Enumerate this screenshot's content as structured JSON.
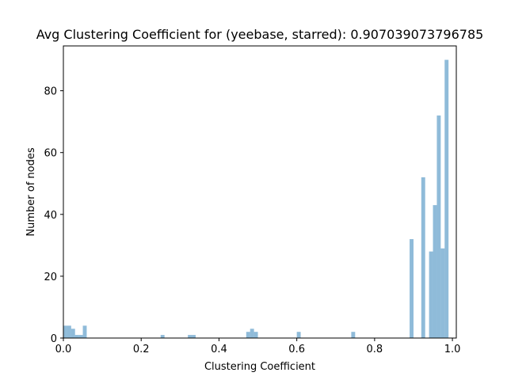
{
  "chart_data": {
    "type": "bar",
    "title": "Avg Clustering Coefficient for (yeebase, starred): 0.907039073796785",
    "xlabel": "Clustering Coefficient",
    "ylabel": "Number of nodes",
    "xlim": [
      0.0,
      1.01
    ],
    "ylim": [
      0,
      94.5
    ],
    "xticks": [
      0.0,
      0.2,
      0.4,
      0.6,
      0.8,
      1.0
    ],
    "xtick_labels": [
      "0.0",
      "0.2",
      "0.4",
      "0.6",
      "0.8",
      "1.0"
    ],
    "yticks": [
      0,
      20,
      40,
      60,
      80
    ],
    "ytick_labels": [
      "0",
      "20",
      "40",
      "60",
      "80"
    ],
    "bin_width": 0.01,
    "bars": [
      {
        "x": 0.0,
        "value": 4
      },
      {
        "x": 0.01,
        "value": 4
      },
      {
        "x": 0.02,
        "value": 3
      },
      {
        "x": 0.03,
        "value": 1
      },
      {
        "x": 0.04,
        "value": 1
      },
      {
        "x": 0.05,
        "value": 4
      },
      {
        "x": 0.25,
        "value": 1
      },
      {
        "x": 0.32,
        "value": 1
      },
      {
        "x": 0.33,
        "value": 1
      },
      {
        "x": 0.47,
        "value": 2
      },
      {
        "x": 0.48,
        "value": 3
      },
      {
        "x": 0.49,
        "value": 2
      },
      {
        "x": 0.6,
        "value": 2
      },
      {
        "x": 0.74,
        "value": 2
      },
      {
        "x": 0.89,
        "value": 32
      },
      {
        "x": 0.92,
        "value": 52
      },
      {
        "x": 0.94,
        "value": 28
      },
      {
        "x": 0.95,
        "value": 43
      },
      {
        "x": 0.96,
        "value": 72
      },
      {
        "x": 0.97,
        "value": 29
      },
      {
        "x": 0.98,
        "value": 90
      }
    ],
    "bar_color": "#1f77b4",
    "bar_alpha": 0.5,
    "grid": false
  }
}
